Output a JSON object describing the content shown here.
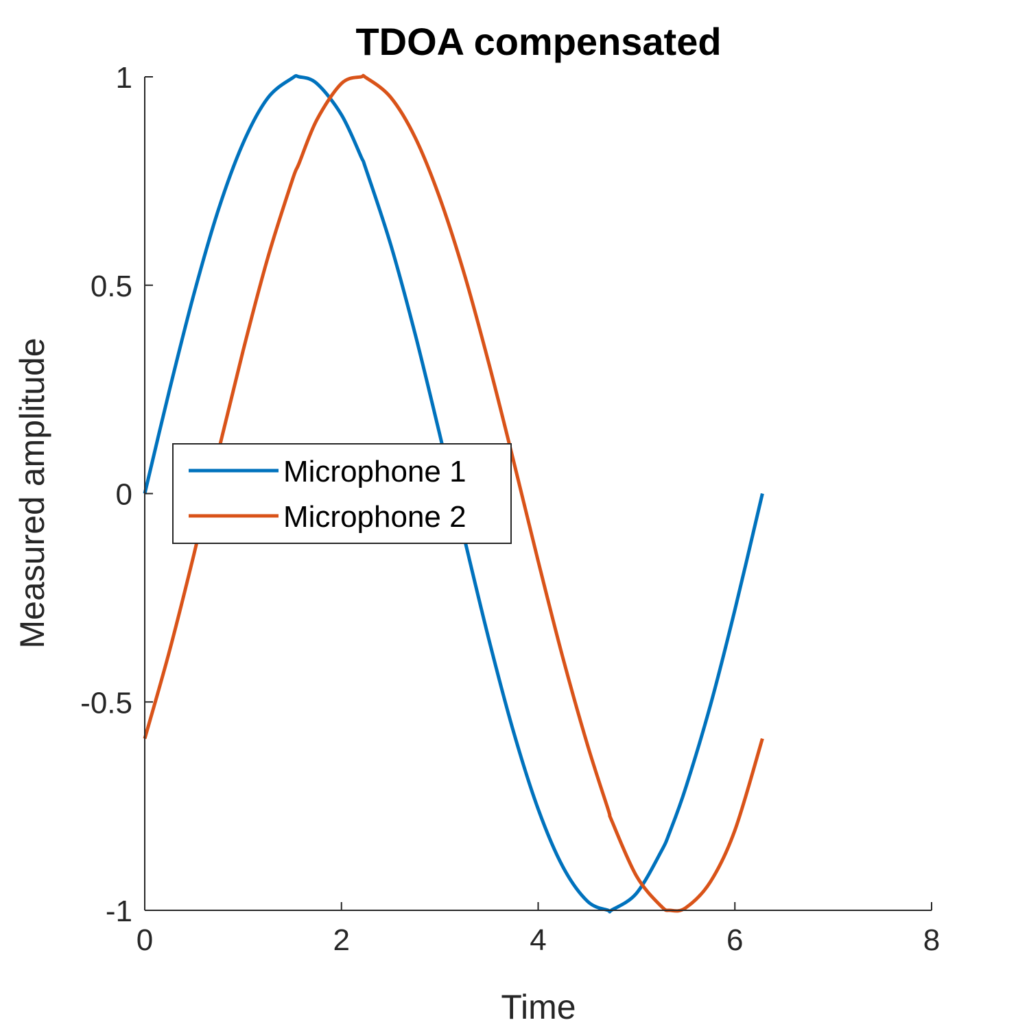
{
  "chart_data": {
    "type": "line",
    "title": "TDOA compensated",
    "xlabel": "Time",
    "ylabel": "Measured amplitude",
    "xlim": [
      0,
      8
    ],
    "ylim": [
      -1,
      1
    ],
    "x_ticks": [
      0,
      2,
      4,
      6,
      8
    ],
    "x_tick_labels": [
      "0",
      "2",
      "4",
      "6",
      "8"
    ],
    "y_ticks": [
      -1,
      -0.5,
      0,
      0.5,
      1
    ],
    "y_tick_labels": [
      "-1",
      "-0.5",
      "0",
      "0.5",
      "1"
    ],
    "grid": false,
    "legend_position": "center-left",
    "x": [
      0,
      0.25,
      0.5,
      0.75,
      1.0,
      1.25,
      1.5,
      1.57,
      1.75,
      2.0,
      2.2,
      2.25,
      2.5,
      2.75,
      3.0,
      3.25,
      3.5,
      3.75,
      4.0,
      4.25,
      4.5,
      4.71,
      4.75,
      5.0,
      5.25,
      5.34,
      5.5,
      5.75,
      6.0,
      6.28
    ],
    "series": [
      {
        "name": "Microphone 1",
        "color": "#0072BD",
        "values": [
          0,
          0.247,
          0.479,
          0.682,
          0.841,
          0.949,
          0.997,
          1.0,
          0.984,
          0.909,
          0.808,
          0.778,
          0.598,
          0.382,
          0.141,
          -0.108,
          -0.351,
          -0.572,
          -0.757,
          -0.895,
          -0.978,
          -1.0,
          -0.999,
          -0.959,
          -0.859,
          -0.811,
          -0.706,
          -0.509,
          -0.279,
          0.0
        ]
      },
      {
        "name": "Microphone 2",
        "color": "#D95319",
        "values": [
          -0.588,
          -0.379,
          -0.146,
          0.102,
          0.343,
          0.565,
          0.752,
          0.793,
          0.897,
          0.984,
          1.0,
          0.998,
          0.951,
          0.854,
          0.709,
          0.526,
          0.311,
          0.078,
          -0.162,
          -0.393,
          -0.602,
          -0.757,
          -0.786,
          -0.918,
          -0.99,
          -1.0,
          -0.994,
          -0.932,
          -0.808,
          -0.588
        ]
      }
    ]
  }
}
